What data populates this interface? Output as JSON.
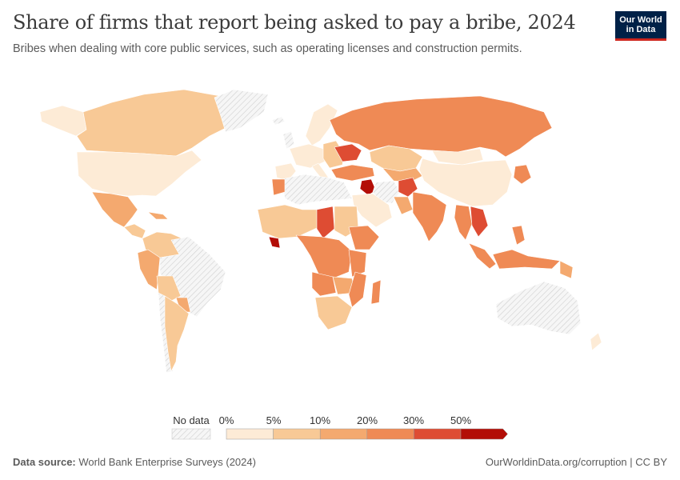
{
  "header": {
    "title": "Share of firms that report being asked to pay a bribe, 2024",
    "subtitle": "Bribes when dealing with core public services, such as operating licenses and construction permits."
  },
  "logo": {
    "line1": "Our World",
    "line2": "in Data"
  },
  "legend": {
    "no_data_label": "No data",
    "tick_labels": [
      "0%",
      "5%",
      "10%",
      "20%",
      "30%",
      "50%"
    ],
    "bins": [
      {
        "from": 0,
        "to": 5,
        "color": "#fdebd6"
      },
      {
        "from": 5,
        "to": 10,
        "color": "#f8c996"
      },
      {
        "from": 10,
        "to": 20,
        "color": "#f4a96f"
      },
      {
        "from": 20,
        "to": 30,
        "color": "#ef8a55"
      },
      {
        "from": 30,
        "to": 50,
        "color": "#de4c33"
      },
      {
        "from": 50,
        "to": null,
        "color": "#b30e07"
      }
    ],
    "no_data_color": "#efefef"
  },
  "colors": {
    "border": "#ffffff",
    "brand_navy": "#002147",
    "brand_red": "#ce261e"
  },
  "footer": {
    "source_label": "Data source:",
    "source_text": "World Bank Enterprise Surveys (2024)",
    "right_text": "OurWorldinData.org/corruption | CC BY"
  }
}
